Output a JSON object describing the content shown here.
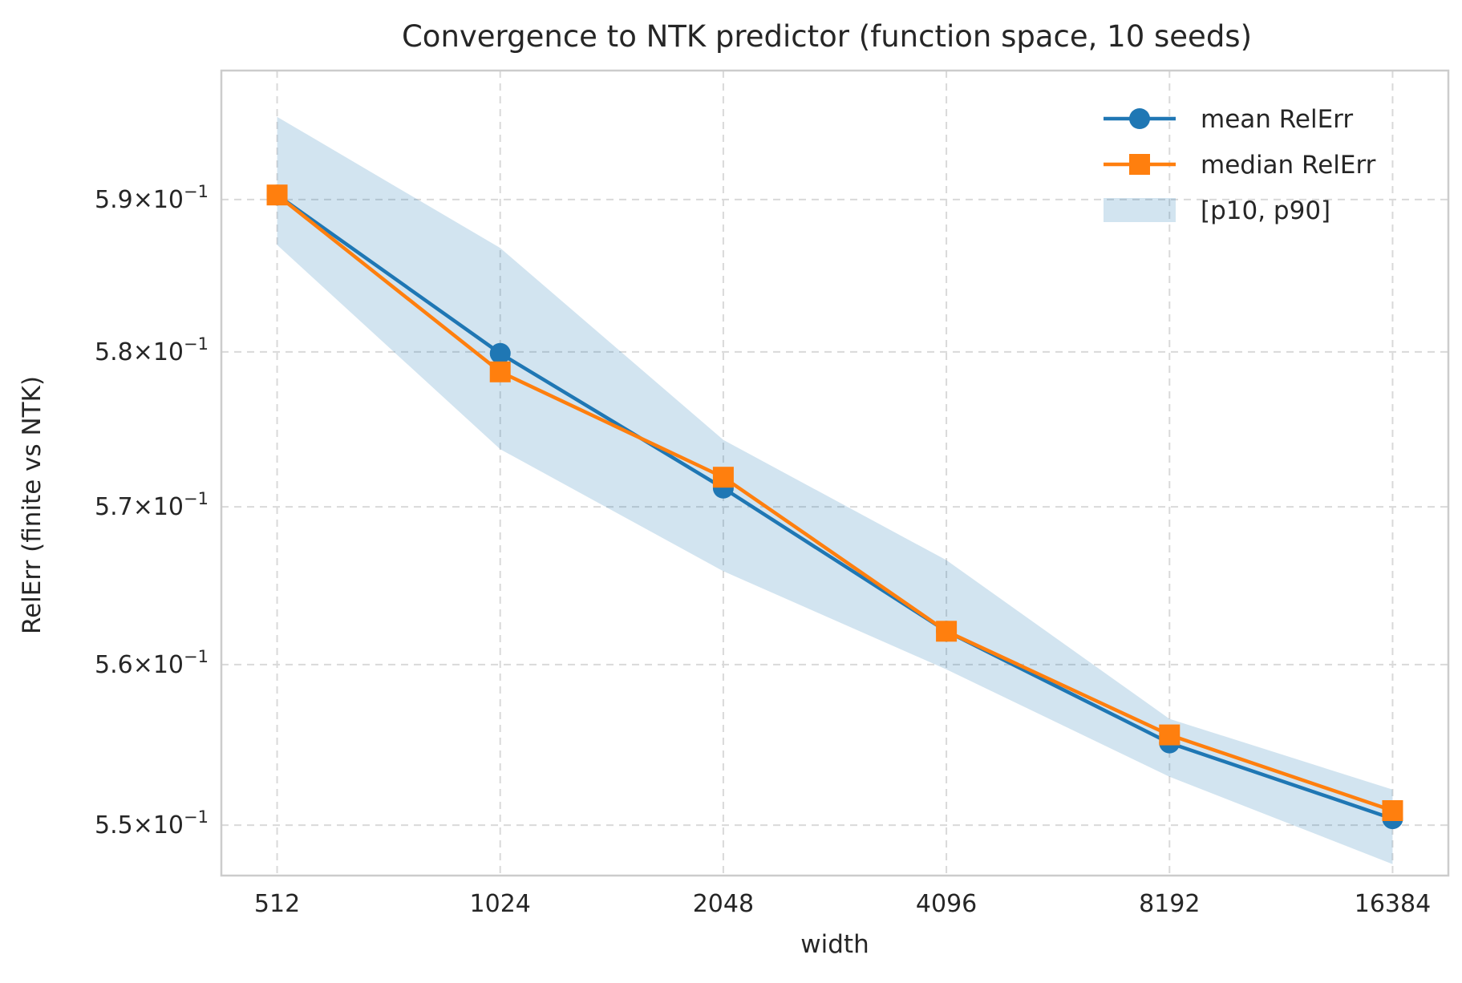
{
  "chart_data": {
    "type": "line",
    "title": "Convergence to NTK predictor (function space, 10 seeds)",
    "xlabel": "width",
    "ylabel": "RelErr (finite vs NTK)",
    "x": [
      512,
      1024,
      2048,
      4096,
      8192,
      16384
    ],
    "x_scale": "log2",
    "y_scale": "log",
    "ylim": [
      0.5469,
      0.5986
    ],
    "y_ticks": [
      {
        "value": 0.55,
        "mantissa": "5.5",
        "exponent": "−1"
      },
      {
        "value": 0.56,
        "mantissa": "5.6",
        "exponent": "−1"
      },
      {
        "value": 0.57,
        "mantissa": "5.7",
        "exponent": "−1"
      },
      {
        "value": 0.58,
        "mantissa": "5.8",
        "exponent": "−1"
      },
      {
        "value": 0.59,
        "mantissa": "5.9",
        "exponent": "−1"
      }
    ],
    "x_tick_labels": [
      "512",
      "1024",
      "2048",
      "4096",
      "8192",
      "16384"
    ],
    "series": [
      {
        "name": "mean RelErr",
        "values": [
          0.5903,
          0.5799,
          0.5712,
          0.5621,
          0.5551,
          0.5504
        ],
        "color": "#1f77b4",
        "marker": "circle"
      },
      {
        "name": "median RelErr",
        "values": [
          0.5903,
          0.5787,
          0.5719,
          0.5621,
          0.5556,
          0.5509
        ],
        "color": "#ff7f0e",
        "marker": "square"
      }
    ],
    "band": {
      "name": "[p10, p90]",
      "lower": [
        0.587,
        0.5737,
        0.5659,
        0.5597,
        0.553,
        0.5476
      ],
      "upper": [
        0.5955,
        0.5868,
        0.5743,
        0.5666,
        0.5566,
        0.5522
      ],
      "color": "#1f77b4"
    },
    "grid": true,
    "legend_position": "top-right"
  }
}
